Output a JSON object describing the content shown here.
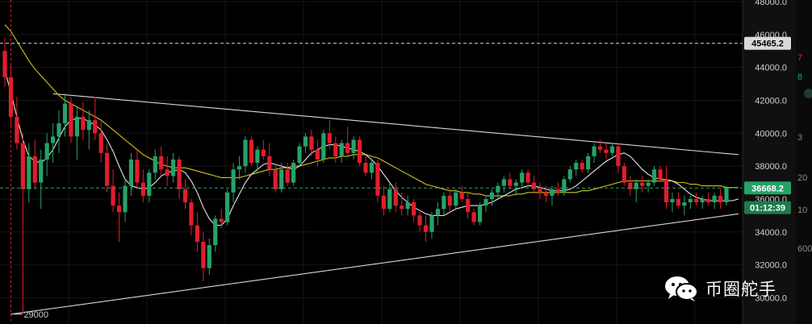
{
  "chart_data": {
    "type": "candlestick",
    "ylim": [
      28600,
      48000
    ],
    "y_ticks": [
      30000,
      32000,
      34000,
      36000,
      38000,
      40000,
      42000,
      44000,
      46000,
      48000
    ],
    "y_tick_labels": [
      "30000.0",
      "32000.0",
      "34000.0",
      "36000.0",
      "38000.0",
      "40000.0",
      "42000.0",
      "44000.0",
      "46000.0",
      "48000.0"
    ],
    "candles": [
      [
        45000,
        45800,
        42800,
        43400
      ],
      [
        43400,
        44200,
        40400,
        41000
      ],
      [
        41000,
        42200,
        39000,
        39400
      ],
      [
        39400,
        40000,
        29000,
        36600
      ],
      [
        36600,
        39400,
        35800,
        38600
      ],
      [
        38600,
        39600,
        36600,
        37000
      ],
      [
        37000,
        39000,
        35400,
        38400
      ],
      [
        38400,
        40000,
        37400,
        39400
      ],
      [
        39400,
        40600,
        38200,
        39800
      ],
      [
        39800,
        41400,
        38800,
        40600
      ],
      [
        40600,
        42400,
        39800,
        41800
      ],
      [
        41800,
        42200,
        39400,
        39800
      ],
      [
        39800,
        41600,
        38400,
        41000
      ],
      [
        41000,
        41900,
        39600,
        40200
      ],
      [
        40200,
        41400,
        39000,
        40800
      ],
      [
        40800,
        42200,
        39600,
        40000
      ],
      [
        40000,
        40800,
        38200,
        38800
      ],
      [
        38800,
        39400,
        36400,
        36800
      ],
      [
        36800,
        37800,
        35200,
        35600
      ],
      [
        35600,
        36400,
        33400,
        35200
      ],
      [
        35200,
        37200,
        34600,
        36800
      ],
      [
        36800,
        38800,
        36200,
        38400
      ],
      [
        38400,
        39000,
        36600,
        37000
      ],
      [
        37000,
        37800,
        35800,
        36200
      ],
      [
        36200,
        37800,
        35800,
        37600
      ],
      [
        37600,
        39000,
        37200,
        38600
      ],
      [
        38600,
        39200,
        37400,
        37800
      ],
      [
        37800,
        38600,
        36800,
        37400
      ],
      [
        37400,
        38800,
        37000,
        38400
      ],
      [
        38400,
        38600,
        36000,
        36600
      ],
      [
        36600,
        37200,
        35400,
        35800
      ],
      [
        35800,
        36000,
        33800,
        34400
      ],
      [
        34400,
        35200,
        32800,
        33400
      ],
      [
        33400,
        34000,
        31000,
        31800
      ],
      [
        31800,
        33600,
        31400,
        33200
      ],
      [
        33200,
        35000,
        32800,
        34800
      ],
      [
        34800,
        35400,
        34200,
        34600
      ],
      [
        34600,
        36600,
        34400,
        36400
      ],
      [
        36400,
        38200,
        35800,
        37800
      ],
      [
        37800,
        38600,
        37200,
        38000
      ],
      [
        38000,
        39800,
        37600,
        39600
      ],
      [
        39600,
        39800,
        38000,
        38200
      ],
      [
        38200,
        39200,
        37600,
        39000
      ],
      [
        39000,
        39600,
        38400,
        38600
      ],
      [
        38600,
        39400,
        37400,
        37800
      ],
      [
        37800,
        38200,
        36400,
        36600
      ],
      [
        36600,
        38200,
        36400,
        37800
      ],
      [
        37800,
        38200,
        36800,
        37000
      ],
      [
        37000,
        38400,
        36800,
        38200
      ],
      [
        38200,
        39400,
        38000,
        39200
      ],
      [
        39200,
        40000,
        38800,
        39800
      ],
      [
        39800,
        40200,
        38600,
        39000
      ],
      [
        39000,
        39600,
        38000,
        38400
      ],
      [
        38400,
        40200,
        38200,
        40000
      ],
      [
        40000,
        40800,
        39000,
        39400
      ],
      [
        39400,
        39800,
        38200,
        38600
      ],
      [
        38600,
        39600,
        38200,
        39400
      ],
      [
        39400,
        40400,
        38600,
        38800
      ],
      [
        38800,
        39800,
        38400,
        39600
      ],
      [
        39600,
        39800,
        38000,
        38200
      ],
      [
        38200,
        38600,
        37400,
        37600
      ],
      [
        37600,
        38400,
        37200,
        38200
      ],
      [
        38200,
        38400,
        35800,
        36200
      ],
      [
        36200,
        36800,
        35000,
        35400
      ],
      [
        35400,
        37000,
        35200,
        36600
      ],
      [
        36600,
        37000,
        35200,
        35600
      ],
      [
        35600,
        36400,
        35000,
        35400
      ],
      [
        35400,
        36200,
        35000,
        35800
      ],
      [
        35800,
        36000,
        34600,
        35000
      ],
      [
        35000,
        35400,
        34000,
        34400
      ],
      [
        34400,
        35000,
        33400,
        34000
      ],
      [
        34000,
        35200,
        33600,
        35000
      ],
      [
        35000,
        35800,
        34400,
        35400
      ],
      [
        35400,
        36400,
        35000,
        36200
      ],
      [
        36200,
        36600,
        35200,
        35600
      ],
      [
        35600,
        36600,
        35400,
        36400
      ],
      [
        36400,
        36800,
        35800,
        36000
      ],
      [
        36000,
        36400,
        34800,
        35200
      ],
      [
        35200,
        35400,
        34400,
        34600
      ],
      [
        34600,
        35800,
        34400,
        35600
      ],
      [
        35600,
        36200,
        35200,
        36000
      ],
      [
        36000,
        36600,
        35600,
        36400
      ],
      [
        36400,
        37000,
        36000,
        36800
      ],
      [
        36800,
        37400,
        36400,
        37200
      ],
      [
        37200,
        37600,
        36600,
        36800
      ],
      [
        36800,
        37200,
        36200,
        37000
      ],
      [
        37000,
        37800,
        36600,
        37600
      ],
      [
        37600,
        37800,
        36800,
        37000
      ],
      [
        37000,
        37400,
        36400,
        36600
      ],
      [
        36600,
        37000,
        36000,
        36400
      ],
      [
        36400,
        36800,
        35800,
        36200
      ],
      [
        36200,
        36800,
        35600,
        36600
      ],
      [
        36600,
        37000,
        36200,
        36400
      ],
      [
        36400,
        37400,
        36200,
        37200
      ],
      [
        37200,
        38000,
        37000,
        37800
      ],
      [
        37800,
        38400,
        37400,
        38200
      ],
      [
        38200,
        38400,
        37600,
        37800
      ],
      [
        37800,
        38800,
        37600,
        38600
      ],
      [
        38600,
        39400,
        38200,
        39200
      ],
      [
        39200,
        39600,
        38800,
        39000
      ],
      [
        39000,
        39400,
        38400,
        38800
      ],
      [
        38800,
        39400,
        38600,
        39200
      ],
      [
        39200,
        39400,
        37600,
        38000
      ],
      [
        38000,
        38200,
        36800,
        37000
      ],
      [
        37000,
        37400,
        36200,
        36600
      ],
      [
        36600,
        37200,
        35800,
        37000
      ],
      [
        37000,
        37400,
        36400,
        36800
      ],
      [
        36800,
        37200,
        36400,
        37000
      ],
      [
        37000,
        38000,
        36800,
        37800
      ],
      [
        37800,
        38000,
        37000,
        37200
      ],
      [
        37200,
        38000,
        35400,
        35800
      ],
      [
        35800,
        36400,
        35200,
        36000
      ],
      [
        36000,
        36400,
        35400,
        35600
      ],
      [
        35600,
        36200,
        35000,
        35800
      ],
      [
        35800,
        36200,
        35400,
        36000
      ],
      [
        36000,
        36400,
        35600,
        35800
      ],
      [
        35800,
        36200,
        35400,
        36000
      ],
      [
        36000,
        36400,
        35600,
        35800
      ],
      [
        35800,
        36400,
        35400,
        36200
      ],
      [
        36200,
        36600,
        35400,
        35800
      ],
      [
        35800,
        36800,
        35600,
        36668
      ]
    ],
    "ma_fast": [
      43800,
      42500,
      41000,
      39600,
      38600,
      38300,
      38200,
      38500,
      39000,
      39700,
      40400,
      40800,
      40900,
      40900,
      40700,
      40500,
      40200,
      39600,
      38900,
      38000,
      37200,
      36800,
      36700,
      36600,
      36700,
      37000,
      37400,
      37600,
      37700,
      37800,
      37600,
      37100,
      36400,
      35500,
      34800,
      34400,
      34400,
      34800,
      35600,
      36300,
      37000,
      37500,
      37800,
      38100,
      38200,
      38100,
      38000,
      37900,
      37800,
      38000,
      38400,
      38800,
      39000,
      39200,
      39300,
      39300,
      39200,
      39100,
      39000,
      38900,
      38700,
      38400,
      38000,
      37500,
      37000,
      36500,
      36100,
      35800,
      35500,
      35300,
      35100,
      35000,
      35000,
      35000,
      35200,
      35400,
      35500,
      35600,
      35600,
      35600,
      35700,
      35800,
      36000,
      36200,
      36400,
      36600,
      36700,
      36800,
      36800,
      36700,
      36600,
      36500,
      36500,
      36500,
      36600,
      36800,
      37100,
      37400,
      37700,
      38000,
      38300,
      38500,
      38700,
      38800,
      38600,
      38200,
      37800,
      37500,
      37300,
      37200,
      37200,
      37100,
      36900,
      36600,
      36300,
      36100,
      36000,
      35900,
      35900,
      35900,
      35900,
      35900,
      36000
    ],
    "ma_slow": [
      46600,
      46200,
      45600,
      45000,
      44400,
      43900,
      43500,
      43100,
      42700,
      42300,
      42000,
      41800,
      41600,
      41400,
      41200,
      41000,
      40800,
      40500,
      40200,
      39900,
      39600,
      39300,
      39000,
      38700,
      38500,
      38300,
      38100,
      38000,
      37900,
      37900,
      37900,
      37800,
      37700,
      37600,
      37500,
      37400,
      37300,
      37300,
      37300,
      37300,
      37400,
      37500,
      37600,
      37700,
      37800,
      37800,
      37900,
      37900,
      38000,
      38000,
      38100,
      38200,
      38300,
      38400,
      38500,
      38500,
      38600,
      38600,
      38700,
      38700,
      38700,
      38600,
      38500,
      38300,
      38100,
      37900,
      37700,
      37500,
      37300,
      37100,
      36900,
      36800,
      36700,
      36600,
      36500,
      36500,
      36400,
      36400,
      36300,
      36300,
      36200,
      36200,
      36200,
      36200,
      36200,
      36300,
      36300,
      36400,
      36400,
      36400,
      36400,
      36400,
      36400,
      36400,
      36400,
      36400,
      36500,
      36500,
      36600,
      36700,
      36800,
      36900,
      37000,
      37100,
      37100,
      37100,
      37100,
      37100,
      37100,
      37100,
      37100,
      37100,
      37000,
      37000,
      36900,
      36900,
      36800,
      36800,
      36800,
      36800,
      36700,
      36700,
      36700
    ],
    "trendlines": [
      {
        "from": [
          8,
          42400
        ],
        "to": [
          122,
          38700
        ]
      },
      {
        "from": [
          1,
          29000
        ],
        "to": [
          122,
          35100
        ]
      }
    ],
    "hlines": [
      {
        "value": 45465.2,
        "color": "#d9d9d9",
        "style": "dashed"
      },
      {
        "value": 36668.2,
        "color": "#26a269",
        "style": "dashed"
      }
    ],
    "vline_index": 1,
    "annotations": [
      {
        "text": "29000",
        "value": 29000,
        "index": 1
      }
    ],
    "price_badges": [
      {
        "text": "45465.2",
        "value": 45465.2,
        "bg": "#d9d9d9",
        "fg": "#000000"
      },
      {
        "text": "36668.2",
        "value": 36668.2,
        "bg": "#26a269",
        "fg": "#ffffff"
      },
      {
        "text": "01:12:39",
        "value": 35480,
        "bg": "#1e7a4e",
        "fg": "#ffffff"
      }
    ],
    "colors": {
      "up": "#26a269",
      "down": "#e01e2b",
      "ma_fast": "#e6e6e6",
      "ma_slow": "#d4c21a",
      "trend": "#d8d8d8"
    }
  },
  "side_texts": [
    {
      "text": "7",
      "color": "#e01e2b"
    },
    {
      "text": "8",
      "color": "#26a269"
    },
    {
      "text": "3",
      "color": "#8a8a8a"
    },
    {
      "text": "20",
      "color": "#8a8a8a"
    },
    {
      "text": "10",
      "color": "#8a8a8a"
    },
    {
      "text": "600",
      "color": "#8a8a8a"
    }
  ],
  "watermark": {
    "text": "币圈舵手",
    "icon": "wechat-icon"
  }
}
